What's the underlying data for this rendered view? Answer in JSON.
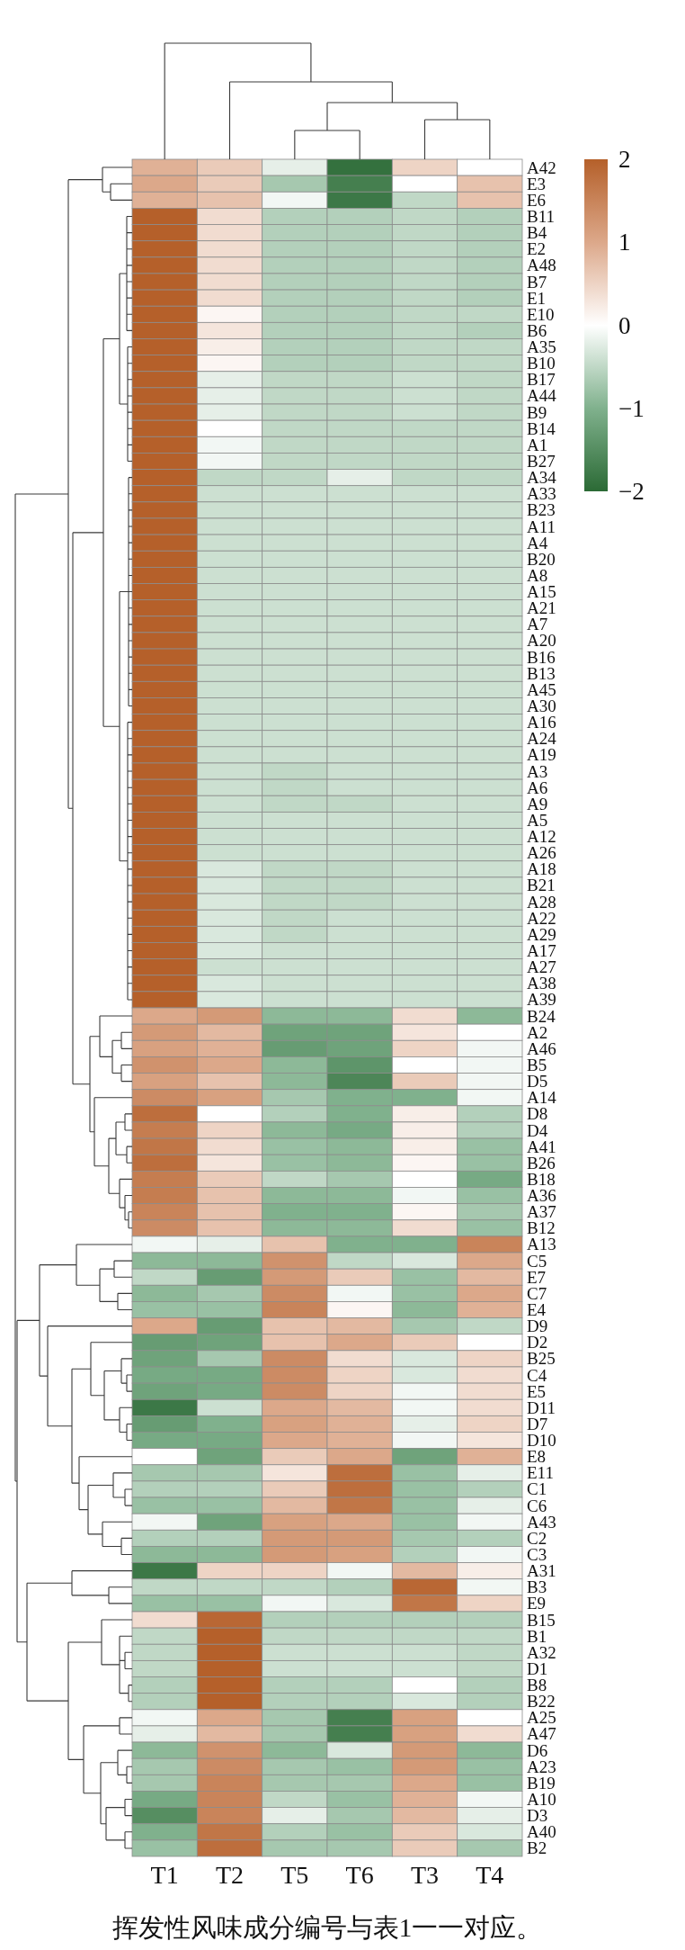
{
  "chart_data": {
    "type": "heatmap",
    "categories": [
      "T1",
      "T2",
      "T5",
      "T6",
      "T3",
      "T4"
    ],
    "y_categories": [
      "A42",
      "E3",
      "E6",
      "B11",
      "B4",
      "E2",
      "A48",
      "B7",
      "E1",
      "E10",
      "B6",
      "A35",
      "B10",
      "B17",
      "A44",
      "B9",
      "B14",
      "A1",
      "B27",
      "A34",
      "A33",
      "B23",
      "A11",
      "A4",
      "B20",
      "A8",
      "A15",
      "A21",
      "A7",
      "A20",
      "B16",
      "B13",
      "A45",
      "A30",
      "A16",
      "A24",
      "A19",
      "A3",
      "A6",
      "A9",
      "A5",
      "A12",
      "A26",
      "A18",
      "B21",
      "A28",
      "A22",
      "A29",
      "A17",
      "A27",
      "A38",
      "A39",
      "B24",
      "A2",
      "A46",
      "B5",
      "D5",
      "A14",
      "D8",
      "D4",
      "A41",
      "B26",
      "B18",
      "A36",
      "A37",
      "B12",
      "A13",
      "C5",
      "E7",
      "C7",
      "E4",
      "D9",
      "D2",
      "B25",
      "C4",
      "E5",
      "D11",
      "D7",
      "D10",
      "E8",
      "E11",
      "C1",
      "C6",
      "A43",
      "C2",
      "C3",
      "A31",
      "B3",
      "E9",
      "B15",
      "B1",
      "A32",
      "D1",
      "B8",
      "B22",
      "A25",
      "A47",
      "D6",
      "A23",
      "B19",
      "A10",
      "D3",
      "A40",
      "B2"
    ],
    "cells": [
      [
        0.9,
        0.6,
        -0.2,
        -1.9,
        0.5,
        0
      ],
      [
        1.0,
        0.6,
        -0.7,
        -1.7,
        0,
        0.7
      ],
      [
        0.9,
        0.7,
        -0.1,
        -1.8,
        -0.5,
        0.7
      ],
      [
        2,
        0.4,
        -0.6,
        -0.6,
        -0.5,
        -0.6
      ],
      [
        2,
        0.4,
        -0.6,
        -0.6,
        -0.5,
        -0.6
      ],
      [
        2,
        0.4,
        -0.6,
        -0.6,
        -0.5,
        -0.6
      ],
      [
        2,
        0.4,
        -0.6,
        -0.6,
        -0.5,
        -0.6
      ],
      [
        2,
        0.4,
        -0.6,
        -0.6,
        -0.5,
        -0.6
      ],
      [
        2,
        0.4,
        -0.6,
        -0.6,
        -0.5,
        -0.6
      ],
      [
        2,
        0.1,
        -0.6,
        -0.6,
        -0.5,
        -0.5
      ],
      [
        2,
        0.3,
        -0.6,
        -0.6,
        -0.5,
        -0.6
      ],
      [
        2,
        0.2,
        -0.6,
        -0.6,
        -0.5,
        -0.5
      ],
      [
        2,
        0.1,
        -0.6,
        -0.6,
        -0.5,
        -0.5
      ],
      [
        2,
        -0.2,
        -0.5,
        -0.5,
        -0.4,
        -0.5
      ],
      [
        2,
        -0.2,
        -0.5,
        -0.5,
        -0.4,
        -0.5
      ],
      [
        2,
        -0.2,
        -0.5,
        -0.5,
        -0.4,
        -0.5
      ],
      [
        2,
        0,
        -0.5,
        -0.5,
        -0.5,
        -0.5
      ],
      [
        2,
        -0.1,
        -0.5,
        -0.5,
        -0.5,
        -0.5
      ],
      [
        2,
        -0.1,
        -0.5,
        -0.5,
        -0.5,
        -0.5
      ],
      [
        2,
        -0.5,
        -0.5,
        -0.2,
        -0.5,
        -0.5
      ],
      [
        2,
        -0.4,
        -0.4,
        -0.4,
        -0.4,
        -0.4
      ],
      [
        2,
        -0.4,
        -0.4,
        -0.4,
        -0.4,
        -0.4
      ],
      [
        2,
        -0.4,
        -0.4,
        -0.4,
        -0.4,
        -0.4
      ],
      [
        2,
        -0.4,
        -0.4,
        -0.4,
        -0.4,
        -0.4
      ],
      [
        2,
        -0.4,
        -0.4,
        -0.4,
        -0.4,
        -0.4
      ],
      [
        2,
        -0.4,
        -0.4,
        -0.4,
        -0.4,
        -0.4
      ],
      [
        2,
        -0.4,
        -0.4,
        -0.4,
        -0.4,
        -0.4
      ],
      [
        2,
        -0.4,
        -0.4,
        -0.4,
        -0.4,
        -0.4
      ],
      [
        2,
        -0.4,
        -0.4,
        -0.4,
        -0.4,
        -0.4
      ],
      [
        2,
        -0.4,
        -0.4,
        -0.4,
        -0.4,
        -0.4
      ],
      [
        2,
        -0.4,
        -0.4,
        -0.4,
        -0.4,
        -0.4
      ],
      [
        2,
        -0.4,
        -0.4,
        -0.4,
        -0.4,
        -0.4
      ],
      [
        2,
        -0.4,
        -0.4,
        -0.4,
        -0.4,
        -0.4
      ],
      [
        2,
        -0.4,
        -0.4,
        -0.4,
        -0.4,
        -0.4
      ],
      [
        2,
        -0.4,
        -0.4,
        -0.4,
        -0.4,
        -0.4
      ],
      [
        2,
        -0.4,
        -0.4,
        -0.4,
        -0.4,
        -0.4
      ],
      [
        2,
        -0.4,
        -0.4,
        -0.4,
        -0.4,
        -0.4
      ],
      [
        2,
        -0.4,
        -0.5,
        -0.4,
        -0.4,
        -0.4
      ],
      [
        2,
        -0.4,
        -0.5,
        -0.4,
        -0.4,
        -0.4
      ],
      [
        2,
        -0.4,
        -0.5,
        -0.5,
        -0.4,
        -0.4
      ],
      [
        2,
        -0.4,
        -0.4,
        -0.4,
        -0.4,
        -0.4
      ],
      [
        2,
        -0.4,
        -0.4,
        -0.4,
        -0.4,
        -0.4
      ],
      [
        2,
        -0.4,
        -0.4,
        -0.4,
        -0.4,
        -0.4
      ],
      [
        2,
        -0.3,
        -0.5,
        -0.5,
        -0.4,
        -0.4
      ],
      [
        2,
        -0.3,
        -0.5,
        -0.5,
        -0.4,
        -0.4
      ],
      [
        2,
        -0.3,
        -0.5,
        -0.5,
        -0.4,
        -0.4
      ],
      [
        2,
        -0.3,
        -0.5,
        -0.4,
        -0.4,
        -0.4
      ],
      [
        2,
        -0.3,
        -0.5,
        -0.4,
        -0.4,
        -0.4
      ],
      [
        2,
        -0.3,
        -0.4,
        -0.4,
        -0.4,
        -0.4
      ],
      [
        2,
        -0.4,
        -0.4,
        -0.4,
        -0.4,
        -0.4
      ],
      [
        2,
        -0.3,
        -0.4,
        -0.4,
        -0.4,
        -0.4
      ],
      [
        2,
        -0.3,
        -0.4,
        -0.4,
        -0.4,
        -0.4
      ],
      [
        1.0,
        1.2,
        -0.9,
        -0.9,
        0.4,
        -0.9
      ],
      [
        1.2,
        0.8,
        -1.2,
        -1.2,
        0.3,
        0
      ],
      [
        1.1,
        0.9,
        -1.3,
        -1.2,
        0.5,
        -0.1
      ],
      [
        1.3,
        1.0,
        -0.9,
        -1.4,
        0,
        -0.1
      ],
      [
        1.1,
        0.7,
        -0.9,
        -1.6,
        0.6,
        -0.1
      ],
      [
        1.4,
        1.1,
        -0.7,
        -1.0,
        -1.0,
        -0.1
      ],
      [
        1.8,
        0,
        -0.6,
        -1.0,
        0.2,
        -0.6
      ],
      [
        1.6,
        0.5,
        -0.9,
        -1.1,
        0.2,
        -0.6
      ],
      [
        1.7,
        0.4,
        -0.8,
        -0.9,
        0.2,
        -0.8
      ],
      [
        1.8,
        0.3,
        -0.8,
        -0.9,
        0.1,
        -0.8
      ],
      [
        1.6,
        0.6,
        -0.5,
        -0.7,
        0,
        -1.1
      ],
      [
        1.6,
        0.7,
        -0.9,
        -0.9,
        -0.1,
        -0.8
      ],
      [
        1.5,
        0.7,
        -1.0,
        -1.0,
        0.1,
        -0.7
      ],
      [
        1.4,
        0.7,
        -0.9,
        -0.9,
        0.4,
        -0.8
      ],
      [
        -0.1,
        -0.2,
        0.7,
        -1.0,
        -1.0,
        1.5
      ],
      [
        -0.9,
        -0.9,
        1.3,
        -0.5,
        -0.3,
        1.0
      ],
      [
        -0.5,
        -1.3,
        1.2,
        0.6,
        -0.8,
        0.8
      ],
      [
        -0.9,
        -0.7,
        1.4,
        -0.1,
        -0.8,
        1.0
      ],
      [
        -0.8,
        -0.8,
        1.5,
        0.1,
        -0.9,
        0.9
      ],
      [
        1.0,
        -1.3,
        0.7,
        0.8,
        -0.7,
        -0.5
      ],
      [
        -1.3,
        -1.2,
        0.7,
        1.0,
        0.6,
        0
      ],
      [
        -1.2,
        -0.7,
        1.4,
        0.4,
        -0.3,
        0.5
      ],
      [
        -1.1,
        -1.1,
        1.4,
        0.5,
        -0.3,
        0.4
      ],
      [
        -1.2,
        -1.1,
        1.4,
        0.5,
        -0.1,
        0.4
      ],
      [
        -1.8,
        -0.4,
        1.0,
        0.8,
        -0.1,
        0.4
      ],
      [
        -1.3,
        -1.0,
        1.1,
        0.9,
        -0.2,
        0.5
      ],
      [
        -1.1,
        -1.1,
        1.0,
        0.9,
        -0.1,
        0.3
      ],
      [
        0,
        -1.2,
        0.6,
        1.0,
        -1.2,
        0.9
      ],
      [
        -0.7,
        -0.7,
        0.3,
        1.8,
        -0.8,
        -0.2
      ],
      [
        -0.6,
        -0.6,
        0.6,
        1.8,
        -0.8,
        -0.6
      ],
      [
        -0.8,
        -0.8,
        0.8,
        1.7,
        -0.8,
        -0.2
      ],
      [
        -0.1,
        -1.2,
        1.1,
        1.0,
        -0.8,
        -0.1
      ],
      [
        -0.6,
        -0.6,
        1.2,
        1.2,
        -0.7,
        -0.6
      ],
      [
        -0.9,
        -0.9,
        1.2,
        1.1,
        -0.6,
        -0.1
      ],
      [
        -1.8,
        0.5,
        0.5,
        -0.1,
        0.8,
        0.2
      ],
      [
        -0.5,
        -0.5,
        -0.5,
        -0.6,
        1.9,
        -0.1
      ],
      [
        -0.8,
        -0.8,
        -0.1,
        -0.3,
        1.7,
        0.5
      ],
      [
        0.4,
        1.9,
        -0.6,
        -0.6,
        -0.6,
        -0.6
      ],
      [
        -0.5,
        2,
        -0.5,
        -0.5,
        -0.5,
        -0.5
      ],
      [
        -0.5,
        2,
        -0.4,
        -0.4,
        -0.4,
        -0.5
      ],
      [
        -0.5,
        2,
        -0.4,
        -0.4,
        -0.4,
        -0.5
      ],
      [
        -0.6,
        2,
        -0.6,
        -0.6,
        0,
        -0.6
      ],
      [
        -0.6,
        2,
        -0.6,
        -0.6,
        -0.3,
        -0.6
      ],
      [
        -0.1,
        1.0,
        -0.7,
        -1.7,
        1.1,
        0
      ],
      [
        -0.2,
        0.8,
        -0.7,
        -1.7,
        1.1,
        0.4
      ],
      [
        -0.9,
        1.3,
        -0.9,
        -0.3,
        1.2,
        -0.9
      ],
      [
        -0.7,
        1.4,
        -0.7,
        -0.8,
        1.2,
        -0.8
      ],
      [
        -0.7,
        1.5,
        -0.7,
        -0.7,
        1.0,
        -0.8
      ],
      [
        -1.1,
        1.5,
        -0.5,
        -0.8,
        0.9,
        -0.1
      ],
      [
        -1.5,
        1.5,
        -0.2,
        -0.7,
        0.8,
        -0.2
      ],
      [
        -1.0,
        1.7,
        -0.6,
        -0.8,
        0.6,
        -0.3
      ],
      [
        -0.8,
        1.8,
        -0.7,
        -0.7,
        0.6,
        -0.7
      ]
    ],
    "clim": [
      -2,
      2
    ],
    "cticks": [
      -2,
      -1,
      0,
      1,
      2
    ],
    "annotations": [
      "挥发性风味成分编号与表1一一对应。"
    ]
  }
}
